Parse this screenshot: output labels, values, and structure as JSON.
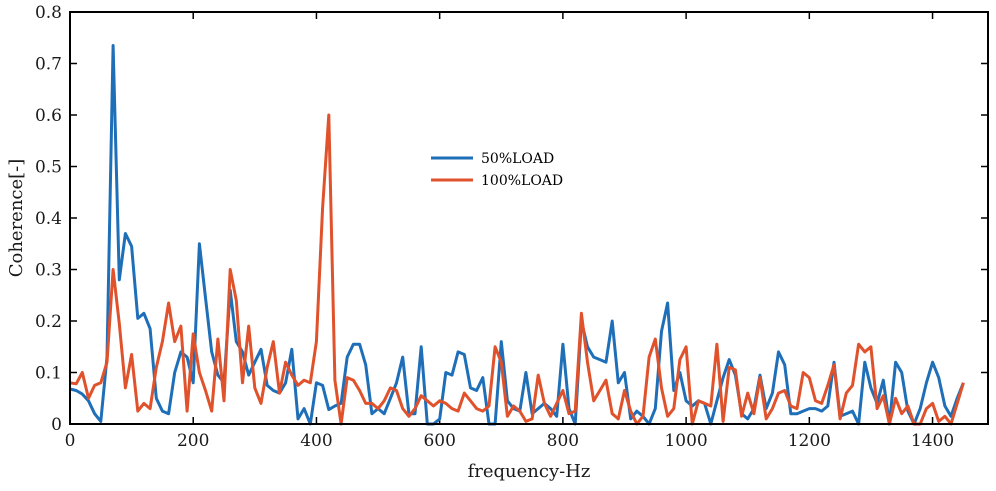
{
  "chart_data": {
    "type": "line",
    "title": "",
    "xlabel": "frequency-Hz",
    "ylabel": "Coherence[-]",
    "xlim": [
      0,
      1490
    ],
    "ylim": [
      0,
      0.8
    ],
    "x_ticks": [
      0,
      200,
      400,
      600,
      800,
      1000,
      1200,
      1400
    ],
    "y_ticks": [
      0,
      0.1,
      0.2,
      0.3,
      0.4,
      0.5,
      0.6,
      0.7,
      0.8
    ],
    "x_tick_labels": [
      "0",
      "200",
      "400",
      "600",
      "800",
      "1000",
      "1200",
      "1400"
    ],
    "y_tick_labels": [
      "0",
      "0.1",
      "0.2",
      "0.3",
      "0.4",
      "0.5",
      "0.6",
      "0.7",
      "0.8"
    ],
    "legend_position": "center",
    "series": [
      {
        "name": "50%LOAD",
        "color": "#1f6fb8",
        "points": [
          [
            0,
            0.068
          ],
          [
            10,
            0.065
          ],
          [
            20,
            0.058
          ],
          [
            30,
            0.045
          ],
          [
            40,
            0.02
          ],
          [
            50,
            0.005
          ],
          [
            60,
            0.13
          ],
          [
            70,
            0.735
          ],
          [
            80,
            0.28
          ],
          [
            90,
            0.37
          ],
          [
            100,
            0.345
          ],
          [
            110,
            0.205
          ],
          [
            120,
            0.215
          ],
          [
            130,
            0.185
          ],
          [
            140,
            0.05
          ],
          [
            150,
            0.025
          ],
          [
            160,
            0.02
          ],
          [
            170,
            0.1
          ],
          [
            180,
            0.14
          ],
          [
            190,
            0.13
          ],
          [
            200,
            0.08
          ],
          [
            210,
            0.35
          ],
          [
            220,
            0.245
          ],
          [
            230,
            0.14
          ],
          [
            240,
            0.095
          ],
          [
            250,
            0.08
          ],
          [
            260,
            0.26
          ],
          [
            270,
            0.16
          ],
          [
            280,
            0.14
          ],
          [
            290,
            0.095
          ],
          [
            300,
            0.12
          ],
          [
            310,
            0.145
          ],
          [
            320,
            0.075
          ],
          [
            330,
            0.065
          ],
          [
            340,
            0.06
          ],
          [
            350,
            0.08
          ],
          [
            360,
            0.145
          ],
          [
            370,
            0.01
          ],
          [
            380,
            0.03
          ],
          [
            390,
            0.0
          ],
          [
            400,
            0.08
          ],
          [
            410,
            0.075
          ],
          [
            420,
            0.028
          ],
          [
            430,
            0.035
          ],
          [
            440,
            0.04
          ],
          [
            450,
            0.13
          ],
          [
            460,
            0.155
          ],
          [
            470,
            0.155
          ],
          [
            480,
            0.115
          ],
          [
            490,
            0.02
          ],
          [
            500,
            0.03
          ],
          [
            510,
            0.02
          ],
          [
            520,
            0.05
          ],
          [
            530,
            0.08
          ],
          [
            540,
            0.13
          ],
          [
            550,
            0.02
          ],
          [
            560,
            0.02
          ],
          [
            570,
            0.15
          ],
          [
            580,
            0.0
          ],
          [
            590,
            0.0
          ],
          [
            600,
            0.01
          ],
          [
            610,
            0.1
          ],
          [
            620,
            0.095
          ],
          [
            630,
            0.14
          ],
          [
            640,
            0.135
          ],
          [
            650,
            0.07
          ],
          [
            660,
            0.065
          ],
          [
            670,
            0.09
          ],
          [
            680,
            0.0
          ],
          [
            690,
            0.0
          ],
          [
            700,
            0.16
          ],
          [
            710,
            0.045
          ],
          [
            720,
            0.03
          ],
          [
            730,
            0.025
          ],
          [
            740,
            0.1
          ],
          [
            750,
            0.02
          ],
          [
            760,
            0.03
          ],
          [
            770,
            0.04
          ],
          [
            780,
            0.03
          ],
          [
            790,
            0.015
          ],
          [
            800,
            0.155
          ],
          [
            810,
            0.03
          ],
          [
            820,
            0.0
          ],
          [
            830,
            0.2
          ],
          [
            840,
            0.15
          ],
          [
            850,
            0.13
          ],
          [
            860,
            0.125
          ],
          [
            870,
            0.12
          ],
          [
            880,
            0.2
          ],
          [
            890,
            0.08
          ],
          [
            900,
            0.1
          ],
          [
            910,
            0.01
          ],
          [
            920,
            0.025
          ],
          [
            930,
            0.015
          ],
          [
            940,
            0.0
          ],
          [
            950,
            0.03
          ],
          [
            960,
            0.18
          ],
          [
            970,
            0.235
          ],
          [
            980,
            0.065
          ],
          [
            990,
            0.1
          ],
          [
            1000,
            0.045
          ],
          [
            1010,
            0.035
          ],
          [
            1020,
            0.045
          ],
          [
            1030,
            0.04
          ],
          [
            1040,
            0.0
          ],
          [
            1050,
            0.045
          ],
          [
            1060,
            0.09
          ],
          [
            1070,
            0.125
          ],
          [
            1080,
            0.095
          ],
          [
            1090,
            0.02
          ],
          [
            1100,
            0.01
          ],
          [
            1110,
            0.03
          ],
          [
            1120,
            0.095
          ],
          [
            1130,
            0.03
          ],
          [
            1140,
            0.06
          ],
          [
            1150,
            0.14
          ],
          [
            1160,
            0.115
          ],
          [
            1170,
            0.02
          ],
          [
            1180,
            0.02
          ],
          [
            1190,
            0.025
          ],
          [
            1200,
            0.03
          ],
          [
            1210,
            0.03
          ],
          [
            1220,
            0.025
          ],
          [
            1230,
            0.035
          ],
          [
            1240,
            0.12
          ],
          [
            1250,
            0.015
          ],
          [
            1260,
            0.02
          ],
          [
            1270,
            0.025
          ],
          [
            1280,
            0.0
          ],
          [
            1290,
            0.12
          ],
          [
            1300,
            0.07
          ],
          [
            1310,
            0.04
          ],
          [
            1320,
            0.085
          ],
          [
            1330,
            0.0
          ],
          [
            1340,
            0.12
          ],
          [
            1350,
            0.1
          ],
          [
            1360,
            0.025
          ],
          [
            1370,
            0.0
          ],
          [
            1380,
            0.03
          ],
          [
            1390,
            0.08
          ],
          [
            1400,
            0.12
          ],
          [
            1410,
            0.09
          ],
          [
            1420,
            0.035
          ],
          [
            1430,
            0.015
          ],
          [
            1440,
            0.05
          ],
          [
            1450,
            0.08
          ]
        ]
      },
      {
        "name": "100%LOAD",
        "color": "#e0522c",
        "points": [
          [
            0,
            0.08
          ],
          [
            10,
            0.078
          ],
          [
            20,
            0.1
          ],
          [
            30,
            0.05
          ],
          [
            40,
            0.075
          ],
          [
            50,
            0.08
          ],
          [
            60,
            0.12
          ],
          [
            70,
            0.3
          ],
          [
            80,
            0.195
          ],
          [
            90,
            0.07
          ],
          [
            100,
            0.135
          ],
          [
            110,
            0.025
          ],
          [
            120,
            0.04
          ],
          [
            130,
            0.03
          ],
          [
            140,
            0.11
          ],
          [
            150,
            0.16
          ],
          [
            160,
            0.235
          ],
          [
            170,
            0.16
          ],
          [
            180,
            0.19
          ],
          [
            190,
            0.025
          ],
          [
            200,
            0.175
          ],
          [
            210,
            0.1
          ],
          [
            220,
            0.065
          ],
          [
            230,
            0.025
          ],
          [
            240,
            0.165
          ],
          [
            250,
            0.045
          ],
          [
            260,
            0.3
          ],
          [
            270,
            0.24
          ],
          [
            280,
            0.08
          ],
          [
            290,
            0.19
          ],
          [
            300,
            0.07
          ],
          [
            310,
            0.04
          ],
          [
            320,
            0.11
          ],
          [
            330,
            0.16
          ],
          [
            340,
            0.06
          ],
          [
            350,
            0.12
          ],
          [
            360,
            0.095
          ],
          [
            370,
            0.075
          ],
          [
            380,
            0.085
          ],
          [
            390,
            0.08
          ],
          [
            400,
            0.16
          ],
          [
            410,
            0.42
          ],
          [
            420,
            0.6
          ],
          [
            430,
            0.085
          ],
          [
            440,
            0.0
          ],
          [
            450,
            0.09
          ],
          [
            460,
            0.085
          ],
          [
            470,
            0.065
          ],
          [
            480,
            0.04
          ],
          [
            490,
            0.04
          ],
          [
            500,
            0.03
          ],
          [
            510,
            0.045
          ],
          [
            520,
            0.07
          ],
          [
            530,
            0.065
          ],
          [
            540,
            0.03
          ],
          [
            550,
            0.015
          ],
          [
            560,
            0.03
          ],
          [
            570,
            0.055
          ],
          [
            580,
            0.045
          ],
          [
            590,
            0.035
          ],
          [
            600,
            0.045
          ],
          [
            610,
            0.04
          ],
          [
            620,
            0.03
          ],
          [
            630,
            0.025
          ],
          [
            640,
            0.06
          ],
          [
            650,
            0.045
          ],
          [
            660,
            0.03
          ],
          [
            670,
            0.025
          ],
          [
            680,
            0.035
          ],
          [
            690,
            0.15
          ],
          [
            700,
            0.12
          ],
          [
            710,
            0.015
          ],
          [
            720,
            0.035
          ],
          [
            730,
            0.025
          ],
          [
            740,
            0.005
          ],
          [
            750,
            0.01
          ],
          [
            760,
            0.095
          ],
          [
            770,
            0.04
          ],
          [
            780,
            0.015
          ],
          [
            790,
            0.04
          ],
          [
            800,
            0.065
          ],
          [
            810,
            0.02
          ],
          [
            820,
            0.025
          ],
          [
            830,
            0.215
          ],
          [
            840,
            0.12
          ],
          [
            850,
            0.045
          ],
          [
            860,
            0.065
          ],
          [
            870,
            0.085
          ],
          [
            880,
            0.02
          ],
          [
            890,
            0.01
          ],
          [
            900,
            0.065
          ],
          [
            910,
            0.025
          ],
          [
            920,
            0.0
          ],
          [
            930,
            0.015
          ],
          [
            940,
            0.13
          ],
          [
            950,
            0.165
          ],
          [
            960,
            0.07
          ],
          [
            970,
            0.015
          ],
          [
            980,
            0.03
          ],
          [
            990,
            0.125
          ],
          [
            1000,
            0.15
          ],
          [
            1010,
            0.0
          ],
          [
            1020,
            0.045
          ],
          [
            1030,
            0.04
          ],
          [
            1040,
            0.035
          ],
          [
            1050,
            0.155
          ],
          [
            1060,
            0.005
          ],
          [
            1070,
            0.11
          ],
          [
            1080,
            0.105
          ],
          [
            1090,
            0.015
          ],
          [
            1100,
            0.06
          ],
          [
            1110,
            0.02
          ],
          [
            1120,
            0.09
          ],
          [
            1130,
            0.01
          ],
          [
            1140,
            0.03
          ],
          [
            1150,
            0.06
          ],
          [
            1160,
            0.065
          ],
          [
            1170,
            0.035
          ],
          [
            1180,
            0.03
          ],
          [
            1190,
            0.1
          ],
          [
            1200,
            0.09
          ],
          [
            1210,
            0.045
          ],
          [
            1220,
            0.04
          ],
          [
            1230,
            0.075
          ],
          [
            1240,
            0.115
          ],
          [
            1250,
            0.01
          ],
          [
            1260,
            0.06
          ],
          [
            1270,
            0.075
          ],
          [
            1280,
            0.155
          ],
          [
            1290,
            0.14
          ],
          [
            1300,
            0.15
          ],
          [
            1310,
            0.03
          ],
          [
            1320,
            0.055
          ],
          [
            1330,
            0.0
          ],
          [
            1340,
            0.05
          ],
          [
            1350,
            0.02
          ],
          [
            1360,
            0.035
          ],
          [
            1370,
            0.0
          ],
          [
            1380,
            0.0
          ],
          [
            1390,
            0.03
          ],
          [
            1400,
            0.04
          ],
          [
            1410,
            0.005
          ],
          [
            1420,
            0.015
          ],
          [
            1430,
            0.0
          ],
          [
            1440,
            0.04
          ],
          [
            1450,
            0.08
          ]
        ]
      }
    ]
  }
}
